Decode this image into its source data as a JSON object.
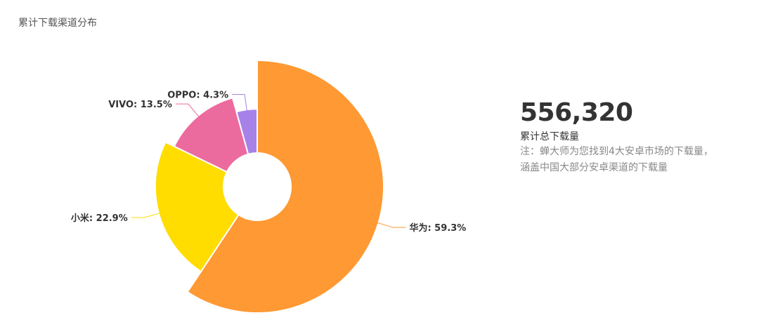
{
  "chart_data": {
    "type": "pie",
    "title": "累计下载渠道分布",
    "categories": [
      "华为",
      "小米",
      "VIVO",
      "OPPO"
    ],
    "values": [
      59.3,
      22.9,
      13.5,
      4.3
    ],
    "labels": [
      "华为: 59.3%",
      "小米: 22.9%",
      "VIVO: 13.5%",
      "OPPO: 4.3%"
    ],
    "colors": [
      "#ff9933",
      "#ffdd00",
      "#ec6b9e",
      "#a682e8"
    ],
    "unit": "%"
  },
  "summary": {
    "total": "556,320",
    "total_label": "累计总下载量",
    "note_line1": "注：蝉大师为您找到4大安卓市场的下载量，",
    "note_line2": "涵盖中国大部分安卓渠道的下载量"
  }
}
